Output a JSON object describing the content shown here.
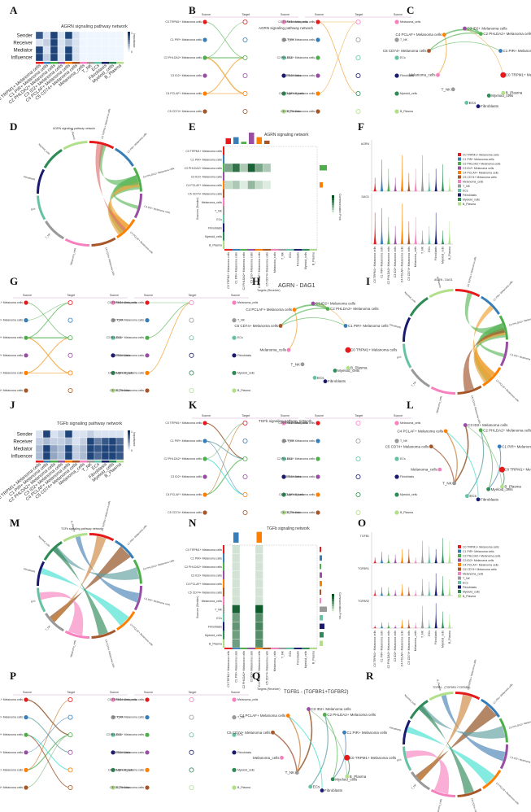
{
  "letters": [
    "A",
    "B",
    "C",
    "D",
    "E",
    "F",
    "G",
    "H",
    "I",
    "J",
    "K",
    "L",
    "M",
    "N",
    "O",
    "P",
    "Q",
    "R"
  ],
  "titles": {
    "A": "AGRN signaling pathway network",
    "B": "AGRN signaling pathway network",
    "D": "AGRN signaling pathway network",
    "E": "AGRN signaling network",
    "H": "AGRN - DAG1",
    "I": "AGRN - DAG1",
    "J": "TGFb signaling pathway network",
    "K": "TGFb signaling pathway network",
    "M": "TGFb signaling pathway network",
    "N": "TGFb signaling network",
    "Q": "TGFB1 - (TGFBR1+TGFBR2)",
    "R": "TGFB1 - (TGFBR1+TGFBR2)"
  },
  "roles": [
    "Sender",
    "Receiver",
    "Mediator",
    "Influencer"
  ],
  "cells": [
    "C0 TRPM1+ Melanoma cells",
    "C1 PIR+ Melanoma cells",
    "C2 PHLDA2+ Melanoma cells",
    "C3 ID2+ Melanoma cells",
    "C4 PCLAF+ Melanoma cells",
    "C5 CD74+ Melanoma cells",
    "Melanoma_cells",
    "T_NK",
    "ECs",
    "Fibroblasts",
    "Myeloid_cells",
    "B_Plasma"
  ],
  "cell_colors": [
    "#e41a1c",
    "#377eb8",
    "#4daf4a",
    "#984ea3",
    "#ff7f00",
    "#a65628",
    "#f781bf",
    "#999999",
    "#66c2a5",
    "#1a1a6e",
    "#2e8b57",
    "#b2df8a"
  ],
  "network_labels": [
    "C3 ID2+ Melanoma cells",
    "C2 PHLDA2+ Melanoma cells",
    "C4 PCLAF+ Melanoma cells",
    "C5 CD74+ Melanoma cells",
    "C1 PIR+ Melanoma cells",
    "C0 TRPM1+ Melanoma cells",
    "Melanoma_cells",
    "T_NK",
    "ECs",
    "Fibroblasts",
    "Myeloid_cells",
    "B_Plasma"
  ],
  "hier_headers": [
    "Source",
    "Target",
    "Source"
  ],
  "hier_left": [
    "C0 TRPM1+ Melanoma cells",
    "C1 PIR+ Melanoma cells",
    "C2 PHLDA2+ Melanoma cells",
    "C3 ID2+ Melanoma cells",
    "C4 PCLAF+ Melanoma cells",
    "C5 CD74+ Melanoma cells"
  ],
  "hier_right": [
    "Melanoma_cells",
    "T_NK",
    "ECs",
    "Fibroblasts",
    "Myeloid_cells",
    "B_Plasma"
  ],
  "heatmap_legend": "Importance",
  "heatmap_legend_ticks": [
    "1",
    "0"
  ],
  "e_axis_y": "Sources (Sender)",
  "e_axis_x": "Targets (Receiver)",
  "e_legend": "Communication Prob.",
  "violin_genes_F": [
    "AGRN",
    "DAG1"
  ],
  "violin_genes_O": [
    "TGFB1",
    "TGFBR1",
    "TGFBR2"
  ],
  "chart_data": [
    {
      "panel": "A",
      "type": "heatmap",
      "title": "AGRN signaling pathway network",
      "rows": [
        "Sender",
        "Receiver",
        "Mediator",
        "Influencer"
      ],
      "columns": [
        "C0 TRPM1+ Melanoma cells",
        "C1 PIR+ Melanoma cells",
        "C2 PHLDA2+ Melanoma cells",
        "C3 ID2+ Melanoma cells",
        "C4 PCLAF+ Melanoma cells",
        "C5 CD74+ Melanoma cells",
        "Melanoma_cells",
        "T_NK",
        "ECs",
        "Fibroblasts",
        "Myeloid_cells",
        "B_Plasma"
      ],
      "values": [
        [
          0.8,
          0.1,
          0.9,
          0.1,
          0.9,
          0.1,
          0,
          0,
          0,
          0,
          0,
          0
        ],
        [
          0.1,
          0.2,
          0.9,
          0.1,
          0.3,
          0.1,
          0,
          0,
          0,
          0,
          0,
          0
        ],
        [
          0.9,
          0.1,
          0.9,
          0.1,
          0.9,
          0.1,
          0,
          0,
          0,
          0,
          0,
          0
        ],
        [
          0.9,
          0.2,
          0.9,
          0.1,
          0.9,
          0.1,
          0,
          0,
          0,
          0,
          0,
          0
        ]
      ],
      "legend_range": [
        0,
        1
      ]
    },
    {
      "panel": "J",
      "type": "heatmap",
      "title": "TGFb signaling pathway network",
      "rows": [
        "Sender",
        "Receiver",
        "Mediator",
        "Influencer"
      ],
      "columns": [
        "C0 TRPM1+ Melanoma cells",
        "C1 PIR+ Melanoma cells",
        "C2 PHLDA2+ Melanoma cells",
        "C3 ID2+ Melanoma cells",
        "C4 PCLAF+ Melanoma cells",
        "C5 CD74+ Melanoma cells",
        "Melanoma_cells",
        "T_NK",
        "ECs",
        "Fibroblasts",
        "Myeloid_cells",
        "B_Plasma"
      ],
      "values": [
        [
          0.1,
          0.9,
          0.1,
          0.2,
          0.9,
          0.1,
          0.1,
          0.2,
          0.1,
          0.1,
          0.1,
          0.1
        ],
        [
          0.2,
          0.3,
          0.2,
          0.2,
          0.3,
          0.1,
          0.2,
          0.9,
          0.6,
          0.8,
          0.9,
          0.7
        ],
        [
          0.3,
          0.9,
          0.4,
          0.3,
          0.9,
          0.2,
          0.3,
          0.9,
          0.8,
          0.9,
          0.9,
          0.8
        ],
        [
          0.3,
          0.9,
          0.4,
          0.3,
          0.9,
          0.2,
          0.3,
          0.9,
          0.7,
          0.9,
          0.9,
          0.8
        ]
      ],
      "legend_range": [
        0,
        1
      ]
    }
  ]
}
